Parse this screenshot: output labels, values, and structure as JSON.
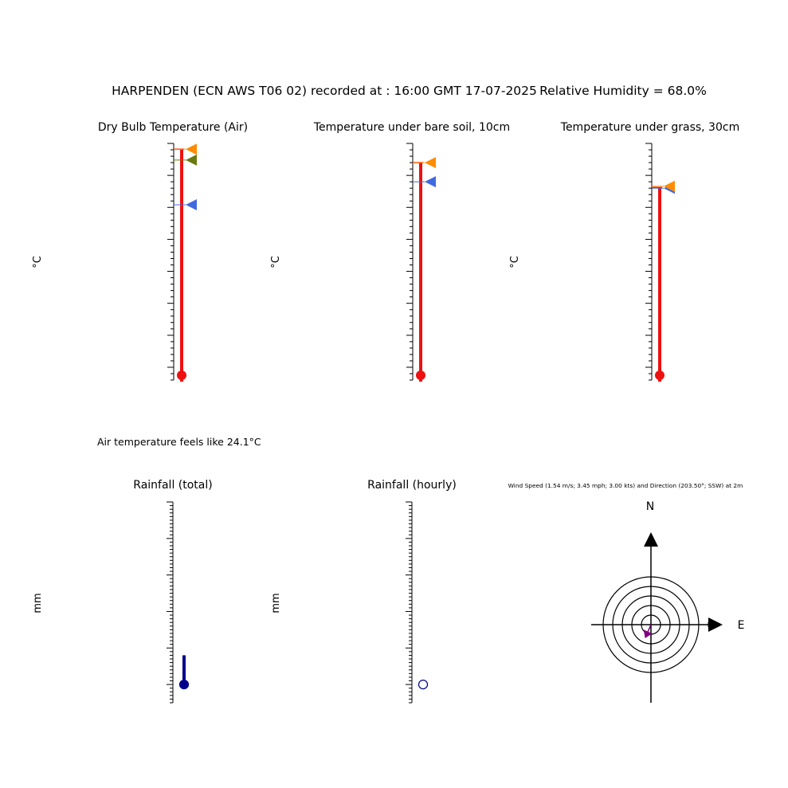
{
  "header": {
    "title": "HARPENDEN (ECN AWS T06 02) recorded at : 16:00 GMT  17-07-2025",
    "humidity": "Relative Humidity = 68.0%"
  },
  "feels_like": "Air temperature feels like 24.1°C",
  "colors": {
    "thermo": "#ee1111",
    "max": "#ff8c00",
    "min": "#4169e1",
    "olive": "#6b7a0e",
    "rain": "#00008b",
    "wind_arrow": "#800080"
  },
  "chart_data": [
    {
      "type": "thermometer",
      "title": "Dry Bulb Temperature (Air)",
      "ylabel": "°C",
      "ylim": [
        -12,
        25
      ],
      "ticks": [
        25,
        20,
        15,
        10,
        5,
        0,
        -5,
        -10
      ],
      "value": 24.1,
      "value_label": "24.1",
      "max": 24.1,
      "min": 15.4,
      "extra": 22.4
    },
    {
      "type": "thermometer",
      "title": "Temperature under bare soil, 10cm",
      "ylabel": "°C",
      "ylim": [
        -12,
        25
      ],
      "ticks": [
        25,
        20,
        15,
        10,
        5,
        0,
        -5,
        -10
      ],
      "value": 22.0,
      "value_label": "22.0",
      "max": 22.0,
      "min": 19.0
    },
    {
      "type": "thermometer",
      "title": "Temperature under grass, 30cm",
      "ylabel": "°C",
      "ylim": [
        -12,
        25
      ],
      "ticks": [
        25,
        20,
        15,
        10,
        5,
        0,
        -5,
        -10
      ],
      "value": 18.1,
      "value_label": "18.1",
      "max": 18.3,
      "min": 18.0
    },
    {
      "type": "rain_gauge",
      "title": "Rainfall (total)",
      "ylabel": "mm",
      "ylim": [
        -0.5,
        5
      ],
      "ticks": [
        5,
        4,
        3,
        2,
        1,
        0
      ],
      "value": 0.8,
      "value_label": "0.8",
      "filled": true
    },
    {
      "type": "rain_gauge",
      "title": "Rainfall (hourly)",
      "ylabel": "mm",
      "ylim": [
        -0.5,
        5
      ],
      "ticks": [
        5,
        4,
        3,
        2,
        1,
        0
      ],
      "value": 0.0,
      "value_label": "0.0",
      "filled": false
    },
    {
      "type": "wind_rose",
      "title": "Wind Speed (1.54 m/s; 3.45 mph; 3.00 kts) and Direction (203.50°; SSW) at 2m",
      "north_label": "N",
      "east_label": "E",
      "rings": [
        1,
        2,
        3,
        4,
        5
      ],
      "ring_labels": [
        "1",
        "2",
        "3",
        "4",
        "5"
      ],
      "speed": 1.54,
      "direction_deg": 203.5
    }
  ]
}
